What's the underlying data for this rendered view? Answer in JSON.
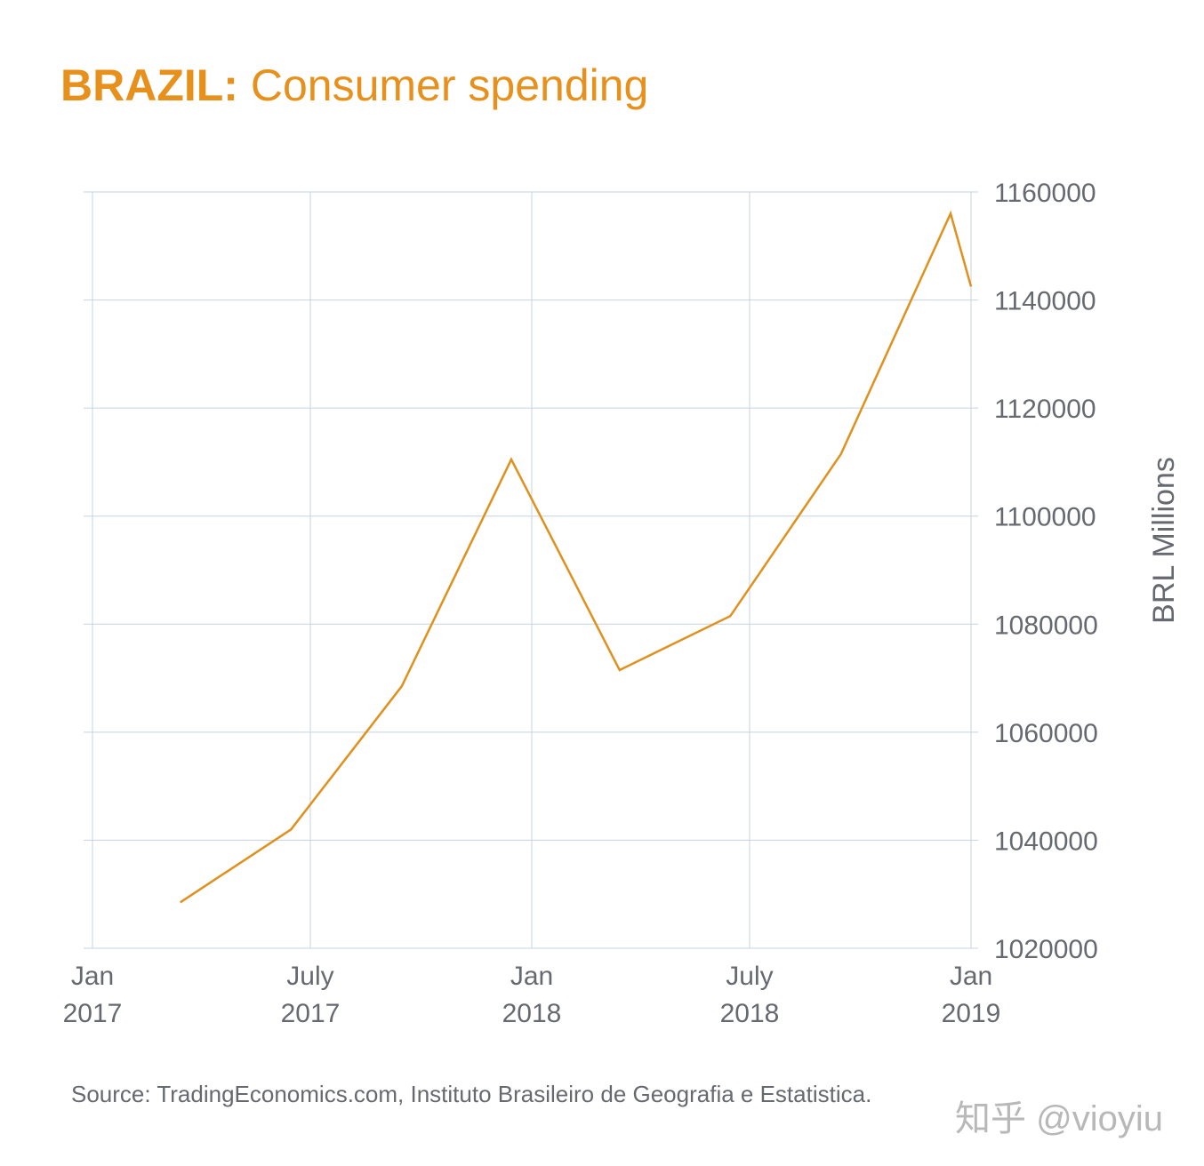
{
  "title": {
    "country": "BRAZIL:",
    "subject": "Consumer spending"
  },
  "source": "Source: TradingEconomics.com, Instituto Brasileiro de Geografia e Estatistica.",
  "watermark": "知乎 @vioyiu",
  "colors": {
    "accent": "#e8901c",
    "line": "#e0901c",
    "grid": "#c5d3e0",
    "text": "#666a70"
  },
  "chart_data": {
    "type": "line",
    "title": "BRAZIL: Consumer spending",
    "ylabel": "BRL Millions",
    "ylim": [
      1020000,
      1160000
    ],
    "y_ticks": [
      1160000,
      1140000,
      1120000,
      1100000,
      1080000,
      1060000,
      1040000,
      1020000
    ],
    "x_range": [
      "2017-01-01",
      "2019-01-01"
    ],
    "x_ticks": [
      {
        "date": "2017-01-01",
        "label1": "Jan",
        "label2": "2017"
      },
      {
        "date": "2017-07-01",
        "label1": "July",
        "label2": "2017"
      },
      {
        "date": "2018-01-01",
        "label1": "Jan",
        "label2": "2018"
      },
      {
        "date": "2018-07-01",
        "label1": "July",
        "label2": "2018"
      },
      {
        "date": "2019-01-01",
        "label1": "Jan",
        "label2": "2019"
      }
    ],
    "grid": true,
    "y_axis_position": "right",
    "series": [
      {
        "x": [
          "2017-03-15",
          "2017-06-15",
          "2017-09-15",
          "2017-12-15",
          "2018-03-15",
          "2018-06-15",
          "2018-09-15",
          "2018-12-15",
          "2019-01-01"
        ],
        "values": [
          1028500,
          1042000,
          1068500,
          1110500,
          1071500,
          1081500,
          1111500,
          1156000,
          1142500
        ]
      }
    ]
  }
}
